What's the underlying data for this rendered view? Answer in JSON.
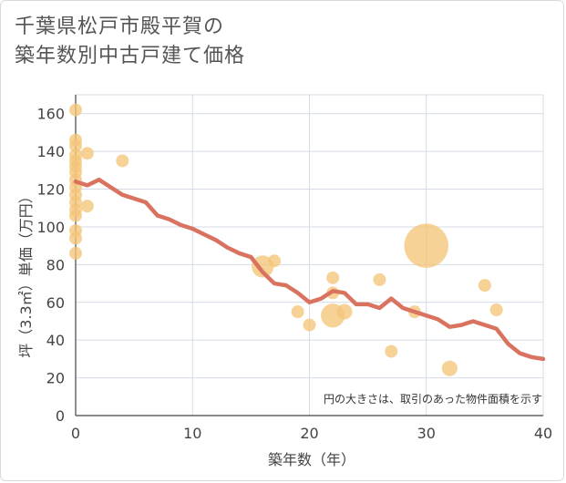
{
  "chart_data": {
    "type": "scatter",
    "title_line1": "千葉県松戸市殿平賀の",
    "title_line2": "築年数別中古戸建て価格",
    "xlabel": "築年数（年）",
    "ylabel": "坪（3.3㎡）単価（万円）",
    "xlim": [
      0,
      40
    ],
    "ylim": [
      0,
      170
    ],
    "x_ticks": [
      0,
      10,
      20,
      30,
      40
    ],
    "y_ticks": [
      0,
      20,
      40,
      60,
      80,
      100,
      120,
      140,
      160
    ],
    "note": "円の大きさは、取引のあった物件面積を示す",
    "colors": {
      "bubble": "#f5c57a",
      "line": "#d9735f",
      "grid": "#d4dbe6"
    },
    "bubbles": [
      {
        "x": 0,
        "y": 162,
        "size": 1
      },
      {
        "x": 0,
        "y": 146,
        "size": 1
      },
      {
        "x": 0,
        "y": 143,
        "size": 1
      },
      {
        "x": 0,
        "y": 138,
        "size": 1
      },
      {
        "x": 0,
        "y": 135,
        "size": 1
      },
      {
        "x": 0,
        "y": 132,
        "size": 1
      },
      {
        "x": 0,
        "y": 129,
        "size": 1
      },
      {
        "x": 0,
        "y": 125,
        "size": 1
      },
      {
        "x": 0,
        "y": 121,
        "size": 1
      },
      {
        "x": 0,
        "y": 117,
        "size": 1
      },
      {
        "x": 0,
        "y": 113,
        "size": 1
      },
      {
        "x": 0,
        "y": 109,
        "size": 1
      },
      {
        "x": 0,
        "y": 106,
        "size": 1
      },
      {
        "x": 0,
        "y": 98,
        "size": 1
      },
      {
        "x": 0,
        "y": 94,
        "size": 1
      },
      {
        "x": 0,
        "y": 86,
        "size": 1
      },
      {
        "x": 1,
        "y": 139,
        "size": 1
      },
      {
        "x": 1,
        "y": 111,
        "size": 1
      },
      {
        "x": 4,
        "y": 135,
        "size": 1
      },
      {
        "x": 16,
        "y": 79,
        "size": 3
      },
      {
        "x": 17,
        "y": 82,
        "size": 1
      },
      {
        "x": 19,
        "y": 55,
        "size": 1
      },
      {
        "x": 20,
        "y": 48,
        "size": 1
      },
      {
        "x": 22,
        "y": 73,
        "size": 1
      },
      {
        "x": 22,
        "y": 65,
        "size": 1
      },
      {
        "x": 22,
        "y": 53,
        "size": 3.5
      },
      {
        "x": 23,
        "y": 55,
        "size": 1.5
      },
      {
        "x": 26,
        "y": 72,
        "size": 1
      },
      {
        "x": 27,
        "y": 34,
        "size": 1
      },
      {
        "x": 29,
        "y": 55,
        "size": 1
      },
      {
        "x": 30,
        "y": 90,
        "size": 12
      },
      {
        "x": 32,
        "y": 25,
        "size": 1.5
      },
      {
        "x": 35,
        "y": 69,
        "size": 1
      },
      {
        "x": 36,
        "y": 56,
        "size": 1
      }
    ],
    "line": {
      "x": [
        0,
        1,
        2,
        3,
        4,
        5,
        6,
        7,
        8,
        9,
        10,
        11,
        12,
        13,
        14,
        15,
        16,
        17,
        18,
        19,
        20,
        21,
        22,
        23,
        24,
        25,
        26,
        27,
        28,
        29,
        30,
        31,
        32,
        33,
        34,
        35,
        36,
        37,
        38,
        39,
        40
      ],
      "y": [
        124,
        122,
        125,
        121,
        117,
        115,
        113,
        106,
        104,
        101,
        99,
        96,
        93,
        89,
        86,
        84,
        76,
        70,
        69,
        65,
        60,
        62,
        66,
        65,
        59,
        59,
        57,
        62,
        57,
        55,
        53,
        51,
        47,
        48,
        50,
        48,
        46,
        38,
        33,
        31,
        30
      ]
    }
  }
}
